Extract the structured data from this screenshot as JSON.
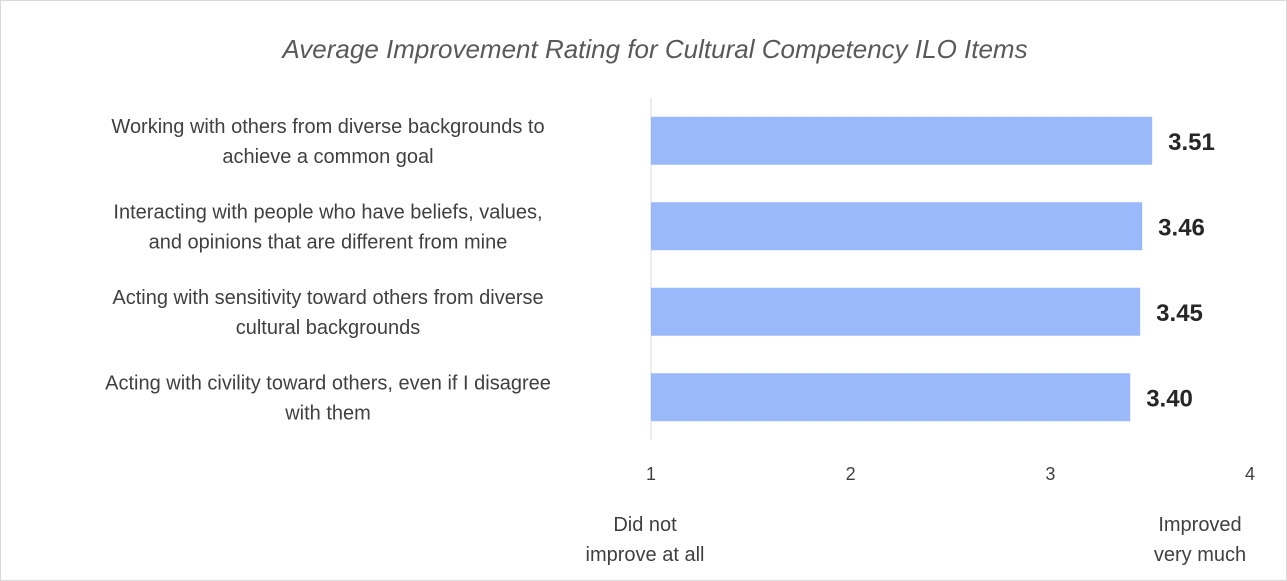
{
  "chart_data": {
    "type": "bar",
    "orientation": "horizontal",
    "title": "Average Improvement Rating for Cultural Competency ILO Items",
    "categories": [
      [
        "Working with others from diverse backgrounds to",
        "achieve a common goal"
      ],
      [
        "Interacting with people who have beliefs, values,",
        "and opinions that are different from mine"
      ],
      [
        "Acting with sensitivity toward others from diverse",
        "cultural backgrounds"
      ],
      [
        "Acting with civility toward others, even if I disagree",
        "with them"
      ]
    ],
    "values": [
      3.51,
      3.46,
      3.45,
      3.4
    ],
    "data_labels": [
      "3.51",
      "3.46",
      "3.45",
      "3.40"
    ],
    "xlim": [
      1,
      4
    ],
    "xticks": [
      "1",
      "2",
      "3",
      "4"
    ],
    "grid": false,
    "bar_color": "#9ab9fb"
  },
  "scale_anchors": {
    "low": [
      "Did not",
      "improve at all"
    ],
    "high": [
      "Improved",
      "very much"
    ]
  }
}
